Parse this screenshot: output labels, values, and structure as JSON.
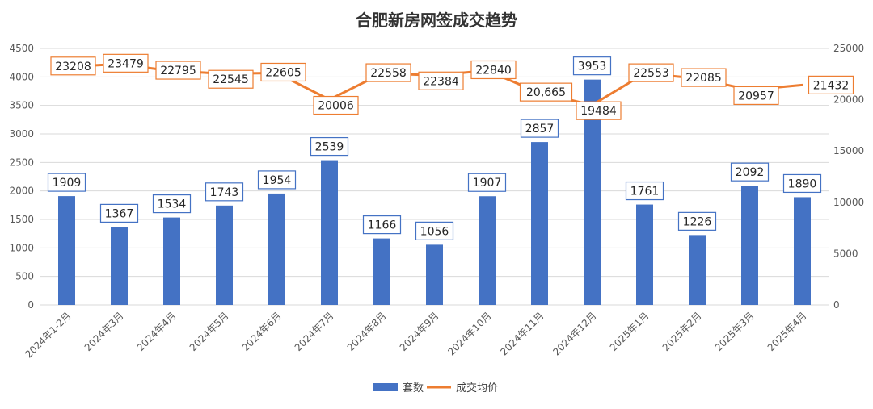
{
  "chart_data": {
    "type": "bar",
    "title": "合肥新房网签成交趋势",
    "categories": [
      "2024年1-2月",
      "2024年3月",
      "2024年4月",
      "2024年5月",
      "2024年6月",
      "2024年7月",
      "2024年8月",
      "2024年9月",
      "2024年10月",
      "2024年11月",
      "2024年12月",
      "2025年1月",
      "2025年2月",
      "2025年3月",
      "2025年4月"
    ],
    "series": [
      {
        "name": "套数",
        "type": "bar",
        "axis": "left",
        "color": "#4472C4",
        "values": [
          1909,
          1367,
          1534,
          1743,
          1954,
          2539,
          1166,
          1056,
          1907,
          2857,
          3953,
          1761,
          1226,
          2092,
          1890
        ],
        "labels": [
          "1909",
          "1367",
          "1534",
          "1743",
          "1954",
          "2539",
          "1166",
          "1056",
          "1907",
          "2857",
          "3953",
          "1761",
          "1226",
          "2092",
          "1890"
        ]
      },
      {
        "name": "成交均价",
        "type": "line",
        "axis": "right",
        "color": "#ED7D31",
        "values": [
          23208,
          23479,
          22795,
          22545,
          22605,
          20006,
          22558,
          22384,
          22840,
          20665,
          19484,
          22553,
          22085,
          20957,
          21432
        ],
        "labels": [
          "23208",
          "23479",
          "22795",
          "22545",
          "22605",
          "20006",
          "22558",
          "22384",
          "22840",
          "20,665",
          "19484",
          "22553",
          "22085",
          "20957",
          "21432"
        ]
      }
    ],
    "y_left": {
      "min": 0,
      "max": 4500,
      "ticks": [
        "0",
        "500",
        "1000",
        "1500",
        "2000",
        "2500",
        "3000",
        "3500",
        "4000",
        "4500"
      ]
    },
    "y_right": {
      "min": 0,
      "max": 25000,
      "ticks": [
        "0",
        "5000",
        "10000",
        "15000",
        "20000",
        "25000"
      ]
    },
    "grid": true,
    "legend": "bottom"
  }
}
